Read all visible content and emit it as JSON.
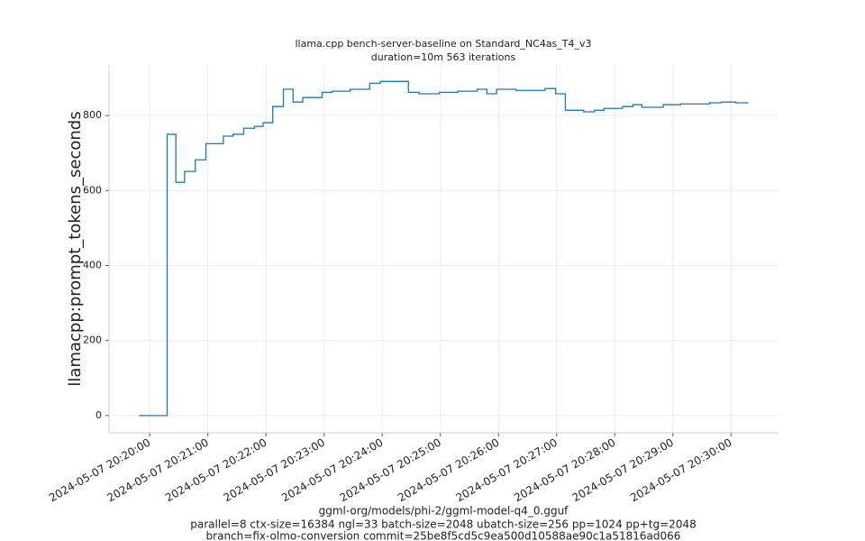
{
  "chart_data": {
    "type": "line",
    "step": "post",
    "title": "llama.cpp bench-server-baseline on Standard_NC4as_T4_v3",
    "subtitle": "duration=10m 563 iterations",
    "y_label": "llamacpp:prompt_tokens_seconds",
    "x_label": [
      "ggml-org/models/phi-2/ggml-model-q4_0.gguf",
      "parallel=8 ctx-size=16384 ngl=33 batch-size=2048 ubatch-size=256 pp=1024 pp+tg=2048",
      "branch=fix-olmo-conversion commit=25be8f5cd5c9ea500d10588ae90c1a51816ad066"
    ],
    "x": [
      "2024-05-07 20:19:49",
      "2024-05-07 20:20:16",
      "2024-05-07 20:20:18",
      "2024-05-07 20:20:27",
      "2024-05-07 20:20:36",
      "2024-05-07 20:20:47",
      "2024-05-07 20:20:58",
      "2024-05-07 20:21:16",
      "2024-05-07 20:21:26",
      "2024-05-07 20:21:37",
      "2024-05-07 20:21:48",
      "2024-05-07 20:21:57",
      "2024-05-07 20:22:07",
      "2024-05-07 20:22:18",
      "2024-05-07 20:22:28",
      "2024-05-07 20:22:38",
      "2024-05-07 20:22:58",
      "2024-05-07 20:23:08",
      "2024-05-07 20:23:27",
      "2024-05-07 20:23:47",
      "2024-05-07 20:23:58",
      "2024-05-07 20:24:27",
      "2024-05-07 20:24:38",
      "2024-05-07 20:24:59",
      "2024-05-07 20:25:18",
      "2024-05-07 20:25:38",
      "2024-05-07 20:25:48",
      "2024-05-07 20:25:58",
      "2024-05-07 20:26:18",
      "2024-05-07 20:26:48",
      "2024-05-07 20:26:59",
      "2024-05-07 20:27:09",
      "2024-05-07 20:27:28",
      "2024-05-07 20:27:39",
      "2024-05-07 20:27:49",
      "2024-05-07 20:28:08",
      "2024-05-07 20:28:19",
      "2024-05-07 20:28:28",
      "2024-05-07 20:28:50",
      "2024-05-07 20:29:08",
      "2024-05-07 20:29:38",
      "2024-05-07 20:29:50",
      "2024-05-07 20:30:05",
      "2024-05-07 20:30:18"
    ],
    "series": [
      {
        "name": "llamacpp:prompt_tokens_seconds",
        "color": "#1f77b4",
        "values": [
          0,
          0,
          750,
          622,
          651,
          682,
          725,
          745,
          750,
          766,
          771,
          781,
          824,
          870,
          836,
          848,
          862,
          865,
          870,
          886,
          891,
          862,
          858,
          862,
          865,
          870,
          858,
          870,
          867,
          872,
          858,
          814,
          810,
          814,
          819,
          824,
          829,
          822,
          829,
          831,
          834,
          836,
          834,
          834
        ]
      }
    ],
    "xlim": [
      "2024-05-07 20:19:18",
      "2024-05-07 20:30:49"
    ],
    "xticks": [
      "2024-05-07 20:20:00",
      "2024-05-07 20:21:00",
      "2024-05-07 20:22:00",
      "2024-05-07 20:23:00",
      "2024-05-07 20:24:00",
      "2024-05-07 20:25:00",
      "2024-05-07 20:26:00",
      "2024-05-07 20:27:00",
      "2024-05-07 20:28:00",
      "2024-05-07 20:29:00",
      "2024-05-07 20:30:00"
    ],
    "ylim": [
      -46,
      935
    ],
    "yticks": [
      0,
      200,
      400,
      600,
      800
    ],
    "grid": true
  }
}
